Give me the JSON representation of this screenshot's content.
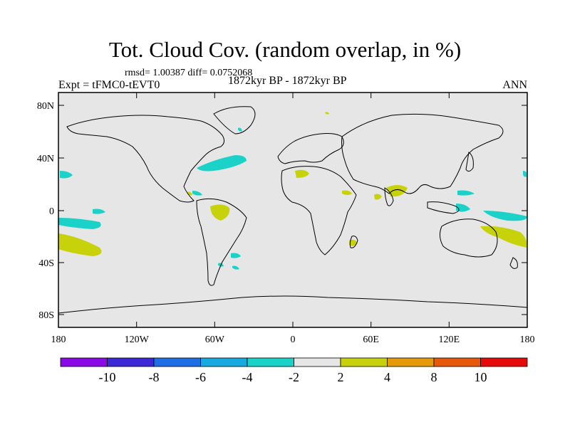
{
  "title": "Tot. Cloud Cov. (random overlap, in %)",
  "stats": "rmsd= 1.00387 diff= 0.0752068",
  "experiment": "Expt = tFMC0-tEVT0",
  "period": "1872kyr BP - 1872kyr BP",
  "season": "ANN",
  "map": {
    "lat_ticks": [
      "80N",
      "40N",
      "0",
      "40S",
      "80S"
    ],
    "lon_ticks": [
      "180",
      "120W",
      "60W",
      "0",
      "60E",
      "120E",
      "180"
    ],
    "background": "#e6e6e6",
    "land_outline": "#000000"
  },
  "colorbar": {
    "labels": [
      "-10",
      "-8",
      "-6",
      "-4",
      "-2",
      "2",
      "4",
      "8",
      "10"
    ],
    "colors": [
      "#8a0ae6",
      "#3c28d6",
      "#1e6ee6",
      "#16aae0",
      "#1ad2c8",
      "#e6e6e6",
      "#c8d20a",
      "#e69a0a",
      "#e6580a",
      "#e60a0a"
    ]
  },
  "anomalies": {
    "positive_color": "#c8d20a",
    "negative_color": "#1ad2c8"
  }
}
